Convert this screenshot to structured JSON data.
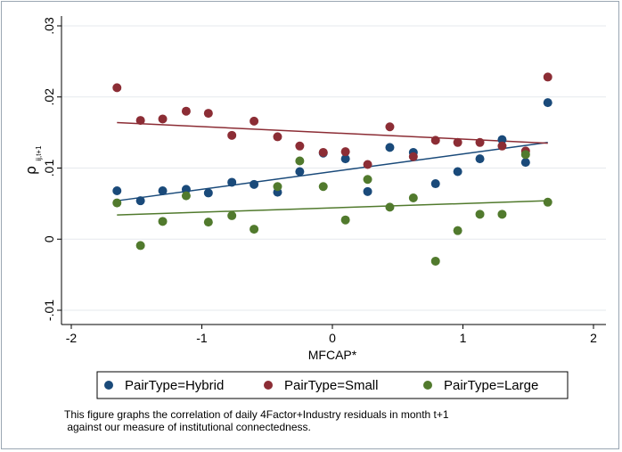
{
  "chart_data": {
    "type": "scatter",
    "title": "",
    "xlabel": "MFCAP*",
    "ylabel": "ρ ij,t+1",
    "ylabel_main": "ρ",
    "ylabel_sub": "ij,t+1",
    "xlim": [
      -2,
      2
    ],
    "ylim": [
      -0.01,
      0.03
    ],
    "xticks": [
      -2,
      -1,
      0,
      1,
      2
    ],
    "xtick_labels": [
      "-2",
      "-1",
      "0",
      "1",
      "2"
    ],
    "yticks": [
      -0.01,
      0,
      0.01,
      0.02,
      0.03
    ],
    "ytick_labels": [
      "-.01",
      "0",
      ".01",
      ".02",
      ".03"
    ],
    "grid": true,
    "legend_position": "bottom",
    "series": [
      {
        "name": "PairType=Hybrid",
        "color": "#1a4a7a",
        "x": [
          -1.65,
          -1.47,
          -1.3,
          -1.12,
          -0.95,
          -0.77,
          -0.6,
          -0.42,
          -0.25,
          -0.07,
          0.1,
          0.27,
          0.44,
          0.62,
          0.79,
          0.96,
          1.13,
          1.3,
          1.48,
          1.65
        ],
        "y": [
          0.0068,
          0.0054,
          0.0068,
          0.007,
          0.0065,
          0.008,
          0.0077,
          0.0066,
          0.0095,
          0.0121,
          0.0113,
          0.0067,
          0.0129,
          0.0122,
          0.0078,
          0.0095,
          0.0113,
          0.014,
          0.0108,
          0.0192
        ],
        "fit": [
          [
            -1.65,
            0.0054
          ],
          [
            1.65,
            0.0136
          ]
        ]
      },
      {
        "name": "PairType=Small",
        "color": "#8c2d35",
        "x": [
          -1.65,
          -1.47,
          -1.3,
          -1.12,
          -0.95,
          -0.77,
          -0.6,
          -0.42,
          -0.25,
          -0.07,
          0.1,
          0.27,
          0.44,
          0.62,
          0.79,
          0.96,
          1.13,
          1.3,
          1.48,
          1.65
        ],
        "y": [
          0.0213,
          0.0167,
          0.0169,
          0.018,
          0.0177,
          0.0146,
          0.0166,
          0.0144,
          0.0131,
          0.0122,
          0.0123,
          0.0105,
          0.0158,
          0.0116,
          0.0139,
          0.0136,
          0.0136,
          0.0131,
          0.0124,
          0.0228
        ],
        "fit": [
          [
            -1.65,
            0.0164
          ],
          [
            1.65,
            0.0135
          ]
        ]
      },
      {
        "name": "PairType=Large",
        "color": "#517a2d",
        "x": [
          -1.65,
          -1.47,
          -1.3,
          -1.12,
          -0.95,
          -0.77,
          -0.6,
          -0.42,
          -0.25,
          -0.07,
          0.1,
          0.27,
          0.44,
          0.62,
          0.79,
          0.96,
          1.13,
          1.3,
          1.48,
          1.65
        ],
        "y": [
          0.0051,
          -0.0009,
          0.0025,
          0.0061,
          0.0024,
          0.0033,
          0.0014,
          0.0074,
          0.011,
          0.0074,
          0.0027,
          0.0084,
          0.0045,
          0.0058,
          -0.0031,
          0.0012,
          0.0035,
          0.0035,
          0.0119,
          0.0052
        ],
        "fit": [
          [
            -1.65,
            0.0034
          ],
          [
            1.65,
            0.0054
          ]
        ]
      }
    ]
  },
  "caption": {
    "line1": "This figure graphs the correlation of daily 4Factor+Industry residuals in month t+1",
    "line2": " against our measure of institutional connectedness."
  }
}
